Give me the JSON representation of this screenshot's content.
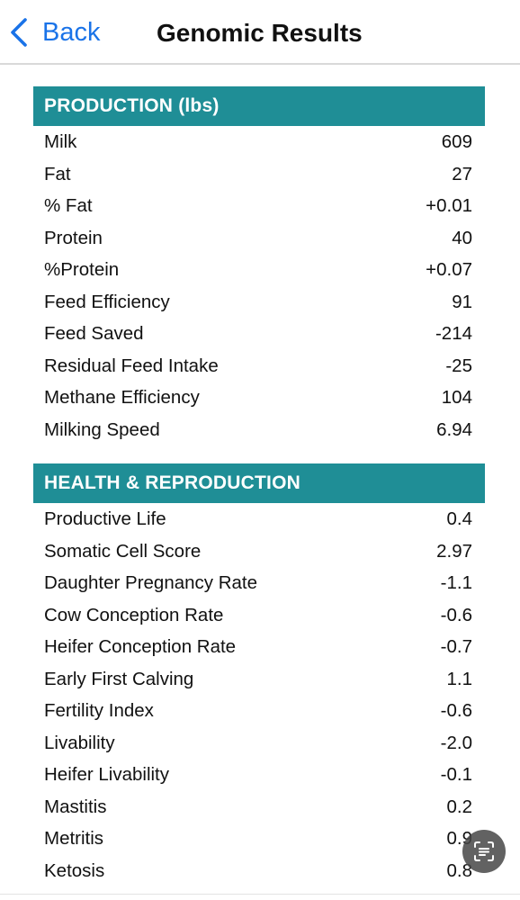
{
  "nav": {
    "back_label": "Back",
    "title": "Genomic Results"
  },
  "sections": [
    {
      "header": "PRODUCTION (lbs)",
      "rows": [
        {
          "label": "Milk",
          "value": "609"
        },
        {
          "label": "Fat",
          "value": "27"
        },
        {
          "label": "% Fat",
          "value": "+0.01"
        },
        {
          "label": "Protein",
          "value": "40"
        },
        {
          "label": "%Protein",
          "value": "+0.07"
        },
        {
          "label": "Feed Efficiency",
          "value": "91"
        },
        {
          "label": "Feed Saved",
          "value": "-214"
        },
        {
          "label": "Residual Feed Intake",
          "value": "-25"
        },
        {
          "label": "Methane Efficiency",
          "value": "104"
        },
        {
          "label": "Milking Speed",
          "value": "6.94"
        }
      ]
    },
    {
      "header": "HEALTH & REPRODUCTION",
      "rows": [
        {
          "label": "Productive Life",
          "value": "0.4"
        },
        {
          "label": "Somatic Cell Score",
          "value": "2.97"
        },
        {
          "label": "Daughter Pregnancy Rate",
          "value": "-1.1"
        },
        {
          "label": "Cow Conception Rate",
          "value": "-0.6"
        },
        {
          "label": "Heifer Conception Rate",
          "value": "-0.7"
        },
        {
          "label": "Early First Calving",
          "value": "1.1"
        },
        {
          "label": "Fertility Index",
          "value": "-0.6"
        },
        {
          "label": "Livability",
          "value": "-2.0"
        },
        {
          "label": "Heifer Livability",
          "value": "-0.1"
        },
        {
          "label": "Mastitis",
          "value": "0.2"
        },
        {
          "label": "Metritis",
          "value": "0.9"
        },
        {
          "label": "Ketosis",
          "value": "0.8"
        }
      ]
    }
  ],
  "colors": {
    "accent": "#1a73e8",
    "section_header": "#1f8e96"
  },
  "icons": {
    "back": "chevron-left-icon",
    "floating": "scan-text-icon"
  }
}
